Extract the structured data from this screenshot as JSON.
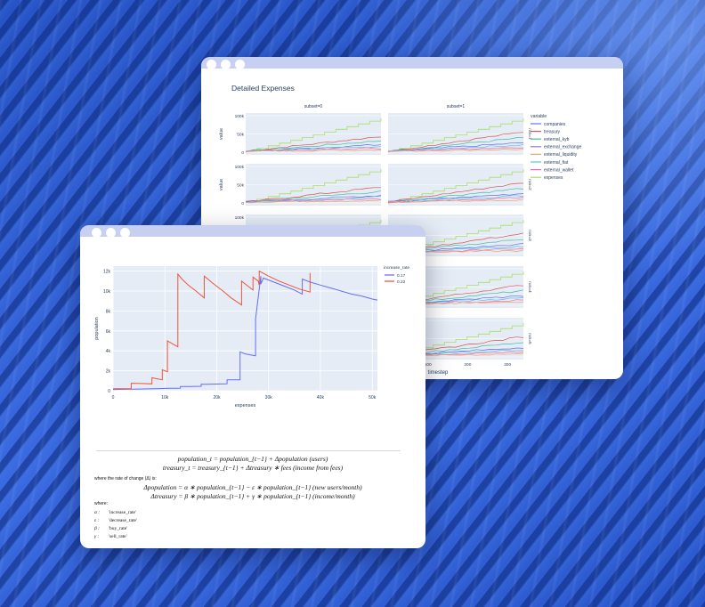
{
  "back_window": {
    "title": "Detailed Expenses",
    "ylabel": "value",
    "xlabel": "timestep",
    "facet_cols": [
      "subset=0",
      "subset=1"
    ],
    "facet_rows": [
      "run=1",
      "run=2",
      "run=3",
      "run=4",
      "run=5"
    ],
    "yticks": [
      "100k",
      "50k",
      "0"
    ],
    "xticks": [
      "100",
      "200",
      "300"
    ],
    "legend_title": "variable",
    "legend": [
      {
        "name": "companies",
        "color": "#636efa"
      },
      {
        "name": "treasury",
        "color": "#d9534f"
      },
      {
        "name": "external_kyb",
        "color": "#3fbf9f"
      },
      {
        "name": "external_exchange",
        "color": "#8e7cc3"
      },
      {
        "name": "external_liquidity",
        "color": "#f4a460"
      },
      {
        "name": "external_fiat",
        "color": "#5bc0de"
      },
      {
        "name": "external_wallet",
        "color": "#f06ea9"
      },
      {
        "name": "expenses",
        "color": "#a8e063"
      }
    ]
  },
  "front_window": {
    "equations": {
      "line1": "population_t = population_{t−1} + Δpopulation   (users)",
      "line2": "treasury_t = treasury_{t−1} + Δtreasury ∗ fees   (income from fees)",
      "roc_label": "where the rate of change (Δ) is:",
      "line3": "Δpopulation = α ∗ population_{t−1} − ε ∗ population_{t−1}   (new users/month)",
      "line4": "Δtreasury = β ∗ population_{t−1} + γ ∗ population_{t−1}   (income/month)",
      "where": "where:",
      "defs": [
        {
          "sym": "α :",
          "name": "'increase_rate'"
        },
        {
          "sym": "ε :",
          "name": "'decrease_rate'"
        },
        {
          "sym": "β :",
          "name": "'buy_rate'"
        },
        {
          "sym": "γ :",
          "name": "'sell_rate'"
        }
      ]
    }
  },
  "chart_data": {
    "type": "line",
    "xlabel": "expenses",
    "ylabel": "population",
    "xlim": [
      0,
      51000
    ],
    "ylim": [
      0,
      12500
    ],
    "xticks": [
      "0",
      "10k",
      "20k",
      "30k",
      "40k",
      "50k"
    ],
    "yticks": [
      "0",
      "2k",
      "4k",
      "6k",
      "8k",
      "10k",
      "12k"
    ],
    "legend_title": "increase_rate",
    "series": [
      {
        "name": "0.17",
        "color": "#636efa",
        "x": [
          0,
          1000,
          2000,
          3000,
          4000,
          5000,
          6000,
          7000,
          8000,
          9000,
          10000,
          11000,
          12000,
          13000,
          13000,
          14000,
          15000,
          16000,
          17000,
          17000,
          18000,
          19000,
          20000,
          21000,
          22000,
          22000,
          23000,
          24000,
          24500,
          24500,
          25500,
          26500,
          27500,
          27500,
          28500,
          28500,
          29000,
          31000,
          33000,
          35000,
          36500,
          36500,
          38000,
          40000,
          42000,
          44000,
          46000,
          48000,
          50000,
          51000
        ],
        "y": [
          120,
          130,
          140,
          150,
          160,
          170,
          180,
          190,
          200,
          210,
          230,
          240,
          250,
          260,
          420,
          420,
          430,
          440,
          450,
          650,
          650,
          660,
          670,
          680,
          700,
          1100,
          1100,
          1100,
          1100,
          3900,
          3700,
          3600,
          3500,
          7200,
          11500,
          10700,
          11300,
          10900,
          10500,
          10100,
          9700,
          11200,
          10900,
          10600,
          10300,
          10000,
          9700,
          9500,
          9200,
          9100
        ]
      },
      {
        "name": "0.22",
        "color": "#ef553b",
        "x": [
          0,
          2000,
          3500,
          3500,
          5500,
          7500,
          7500,
          8500,
          9500,
          9500,
          10500,
          10500,
          11500,
          12500,
          12500,
          13300,
          14500,
          16000,
          17600,
          17600,
          19200,
          21200,
          22800,
          24800,
          24800,
          26000,
          27000,
          27000,
          28000,
          28200,
          28200,
          30000,
          32000,
          34000,
          36000,
          38000,
          38000
        ],
        "y": [
          200,
          200,
          200,
          750,
          720,
          690,
          1300,
          1200,
          1100,
          2100,
          1900,
          5000,
          4700,
          4400,
          11700,
          11200,
          10600,
          10000,
          9300,
          11500,
          10800,
          10000,
          9300,
          8600,
          11000,
          10500,
          10100,
          11400,
          11000,
          10600,
          12000,
          11500,
          11000,
          10600,
          10200,
          9900,
          11800
        ]
      }
    ]
  }
}
